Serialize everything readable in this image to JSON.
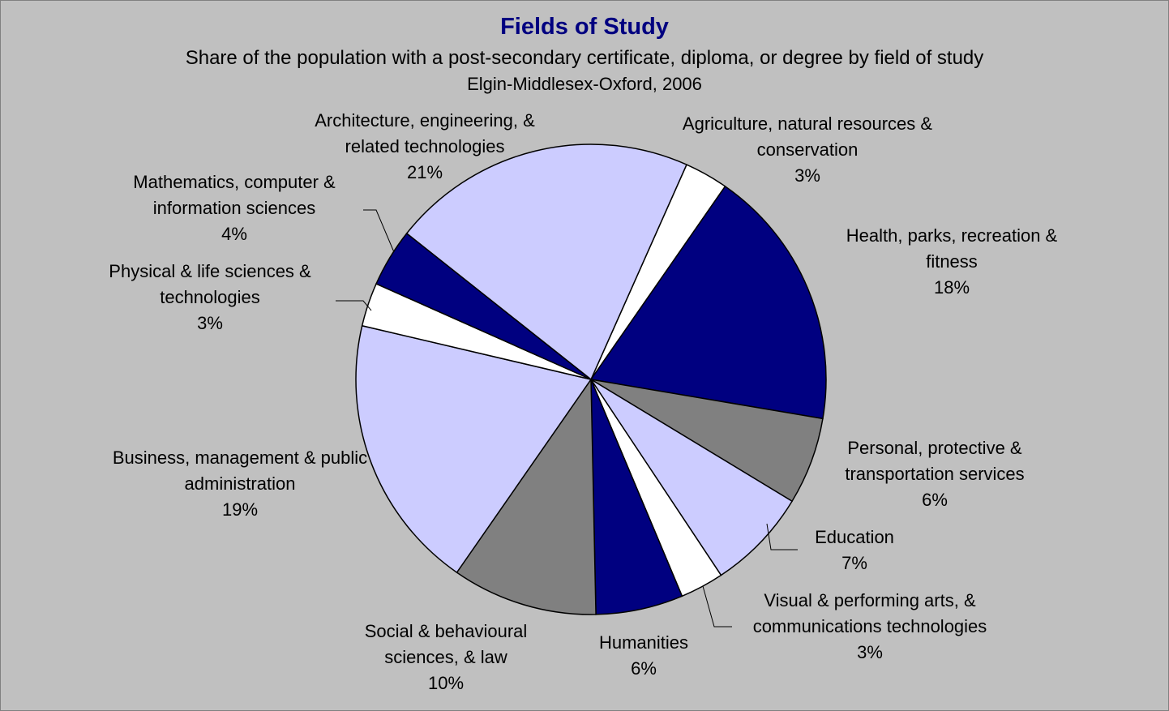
{
  "chart_data": {
    "type": "pie",
    "title": "Fields of Study",
    "subtitle": "Share of the population with a post-secondary certificate, diploma, or degree by field of study",
    "subtitle2": "Elgin-Middlesex-Oxford, 2006",
    "categories": [
      "Agriculture, natural resources &  conservation",
      "Health, parks, recreation & fitness",
      "Personal, protective & transportation services",
      "Education",
      "Visual & performing arts, & communications technologies",
      "Humanities",
      "Social & behavioural sciences, & law",
      "Business, management & public administration",
      "Physical & life sciences & technologies",
      "Mathematics, computer & information sciences",
      "Architecture, engineering, & related technologies"
    ],
    "values": [
      3,
      18,
      6,
      7,
      3,
      6,
      10,
      19,
      3,
      4,
      21
    ],
    "value_labels": [
      "3%",
      "18%",
      "6%",
      "7%",
      "3%",
      "6%",
      "10%",
      "19%",
      "3%",
      "4%",
      "21%"
    ],
    "colors": [
      "#ffffff",
      "#000080",
      "#808080",
      "#ccccff",
      "#ffffff",
      "#000080",
      "#808080",
      "#ccccff",
      "#ffffff",
      "#000080",
      "#ccccff"
    ]
  }
}
